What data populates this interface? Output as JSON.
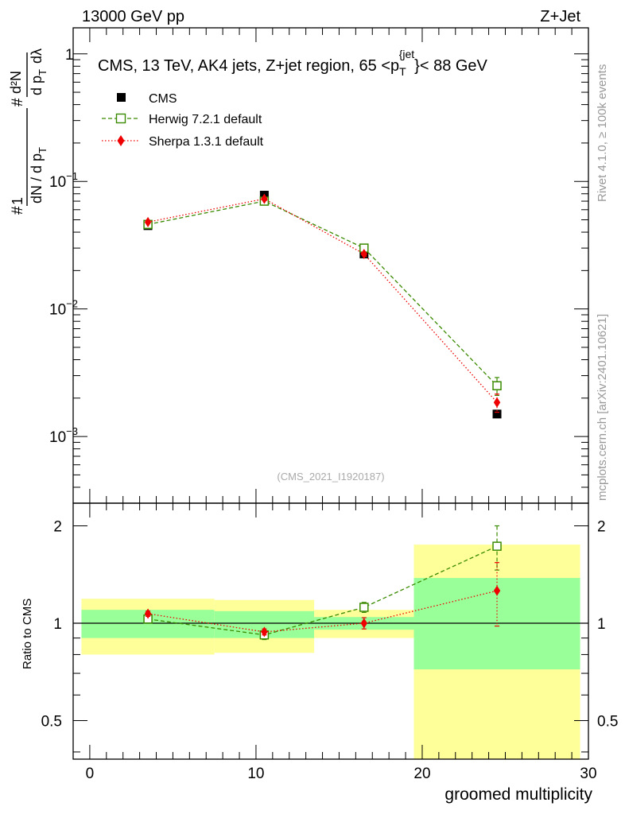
{
  "header": {
    "left": "13000 GeV pp",
    "right": "Z+Jet"
  },
  "side": {
    "rivet": "Rivet 4.1.0, ≥ 100k events",
    "mcplots": "mcplots.cern.ch [arXiv:2401.10621]"
  },
  "watermark": "(CMS_2021_I1920187)",
  "colors": {
    "cms": "#000000",
    "herwig": "#3a8a00",
    "sherpa": "#ee0000",
    "band_inner": "#99ff99",
    "band_outer": "#ffff99"
  },
  "chart_data": [
    {
      "type": "scatter",
      "panel": "main",
      "title": "CMS, 13 TeV, AK4 jets, Z+jet region, 65 <p_T^{jet}< 88 GeV",
      "title_parts": {
        "a": "CMS, 13 TeV, AK4 jets, Z+jet region, 65 <p",
        "sub": "T",
        "sup": "{jet",
        "b": "}< 88 GeV"
      },
      "ylabel": "1/(dN/dpT) d²N/(dpT dλ)",
      "ylabel_parts": {
        "frac1_num": "1",
        "frac1_den": "dN / d p",
        "frac2_num": "d²N",
        "frac2_den": "d p",
        "sub": "T",
        "lambda": "dλ"
      },
      "yscale": "log",
      "ylim": [
        0.0003,
        1.6
      ],
      "xlim": [
        -1,
        30
      ],
      "y_ticks": [
        {
          "v": 1,
          "label": "1"
        },
        {
          "v": 0.1,
          "label": "10",
          "exp": "−1"
        },
        {
          "v": 0.01,
          "label": "10",
          "exp": "−2"
        },
        {
          "v": 0.001,
          "label": "10",
          "exp": "−3"
        }
      ],
      "legend_position": "top-left",
      "series": [
        {
          "name": "CMS",
          "marker": "filled-square",
          "x": [
            3.5,
            10.5,
            16.5,
            24.5
          ],
          "y": [
            0.045,
            0.078,
            0.027,
            0.0015
          ]
        },
        {
          "name": "Herwig 7.2.1 default",
          "marker": "open-square",
          "line": "dashed",
          "x": [
            3.5,
            10.5,
            16.5,
            24.5
          ],
          "y": [
            0.046,
            0.07,
            0.03,
            0.0025
          ],
          "yerr": [
            0.001,
            0.001,
            0.0008,
            0.0004
          ]
        },
        {
          "name": "Sherpa 1.3.1 default",
          "marker": "diamond",
          "line": "dotted",
          "x": [
            3.5,
            10.5,
            16.5,
            24.5
          ],
          "y": [
            0.048,
            0.073,
            0.027,
            0.00185
          ],
          "yerr": [
            0.001,
            0.001,
            0.0008,
            0.0003
          ]
        }
      ]
    },
    {
      "type": "scatter",
      "panel": "ratio",
      "ylabel": "Ratio to CMS",
      "xlabel": "groomed multiplicity",
      "yscale": "log",
      "ylim": [
        0.38,
        2.35
      ],
      "xlim": [
        -1,
        30
      ],
      "y_ticks": [
        {
          "v": 2,
          "label": "2"
        },
        {
          "v": 1,
          "label": "1"
        },
        {
          "v": 0.5,
          "label": "0.5"
        }
      ],
      "x_ticks": [
        {
          "v": 0,
          "label": "0"
        },
        {
          "v": 10,
          "label": "10"
        },
        {
          "v": 20,
          "label": "20"
        },
        {
          "v": 30,
          "label": "30"
        }
      ],
      "reference_line": 1,
      "bands": [
        {
          "x": [
            -0.5,
            7.5
          ],
          "inner": [
            0.9,
            1.1
          ],
          "outer": [
            0.8,
            1.19
          ]
        },
        {
          "x": [
            7.5,
            13.5
          ],
          "inner": [
            0.9,
            1.09
          ],
          "outer": [
            0.81,
            1.18
          ]
        },
        {
          "x": [
            13.5,
            19.5
          ],
          "inner": [
            0.955,
            1.045
          ],
          "outer": [
            0.9,
            1.1
          ]
        },
        {
          "x": [
            19.5,
            29.5
          ],
          "inner": [
            0.72,
            1.38
          ],
          "outer": [
            0.25,
            1.75
          ]
        }
      ],
      "series": [
        {
          "name": "Herwig 7.2.1 default",
          "x": [
            3.5,
            10.5,
            16.5,
            24.5
          ],
          "y": [
            1.03,
            0.92,
            1.12,
            1.73
          ],
          "yerr": [
            0.03,
            0.03,
            0.04,
            0.27
          ]
        },
        {
          "name": "Sherpa 1.3.1 default",
          "x": [
            3.5,
            10.5,
            16.5,
            24.5
          ],
          "y": [
            1.07,
            0.94,
            1.0,
            1.26
          ],
          "yerr": [
            0.02,
            0.02,
            0.04,
            0.28
          ]
        }
      ]
    }
  ]
}
